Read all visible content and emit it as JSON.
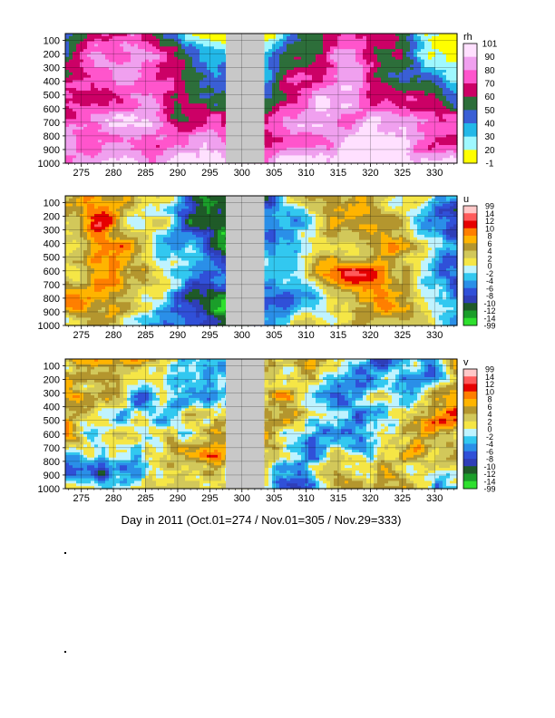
{
  "chart_data": [
    {
      "type": "heatmap",
      "variable": "rh",
      "xlabel": "",
      "ylabel": "",
      "xlim": [
        272.5,
        333.5
      ],
      "ylim": [
        1000,
        50
      ],
      "x_ticks": [
        275,
        280,
        285,
        290,
        295,
        300,
        305,
        310,
        315,
        320,
        325,
        330
      ],
      "y_ticks": [
        100,
        200,
        300,
        400,
        500,
        600,
        700,
        800,
        900,
        1000
      ],
      "missing_days": [
        297.5,
        303.5
      ],
      "colorbar": {
        "labels": [
          "101",
          "90",
          "80",
          "70",
          "60",
          "50",
          "40",
          "30",
          "20",
          "-1"
        ],
        "colors": [
          "#ffe0ff",
          "#f0a0ef",
          "#ff55cc",
          "#cc0066",
          "#2d6e3a",
          "#3a5fd5",
          "#22b8e8",
          "#9ff8ff",
          "#ffff00"
        ]
      },
      "grid": true
    },
    {
      "type": "heatmap",
      "variable": "u",
      "xlabel": "",
      "ylabel": "",
      "xlim": [
        272.5,
        333.5
      ],
      "ylim": [
        1000,
        50
      ],
      "x_ticks": [
        275,
        280,
        285,
        290,
        295,
        300,
        305,
        310,
        315,
        320,
        325,
        330
      ],
      "y_ticks": [
        100,
        200,
        300,
        400,
        500,
        600,
        700,
        800,
        900,
        1000
      ],
      "missing_days": [
        297.5,
        303.5
      ],
      "colorbar": {
        "labels": [
          "99",
          "14",
          "12",
          "10",
          "8",
          "6",
          "4",
          "2",
          "0",
          "-2",
          "-4",
          "-6",
          "-8",
          "-10",
          "-12",
          "-14",
          "-99"
        ],
        "colors": [
          "#ffc8c8",
          "#ff5a5a",
          "#e60000",
          "#ff7f00",
          "#ffb400",
          "#b4962e",
          "#d2c85a",
          "#f5e646",
          "#bff3ff",
          "#32c8f0",
          "#2a8fe8",
          "#3050d8",
          "#2f3eb8",
          "#1f5a28",
          "#1b9e2a",
          "#2ee02e"
        ]
      },
      "grid": true
    },
    {
      "type": "heatmap",
      "variable": "v",
      "xlabel": "Day in 2011 (Oct.01=274 / Nov.01=305 / Nov.29=333)",
      "ylabel": "",
      "xlim": [
        272.5,
        333.5
      ],
      "ylim": [
        1000,
        50
      ],
      "x_ticks": [
        275,
        280,
        285,
        290,
        295,
        300,
        305,
        310,
        315,
        320,
        325,
        330
      ],
      "y_ticks": [
        100,
        200,
        300,
        400,
        500,
        600,
        700,
        800,
        900,
        1000
      ],
      "missing_days": [
        297.5,
        303.5
      ],
      "colorbar": {
        "labels": [
          "99",
          "14",
          "12",
          "10",
          "8",
          "6",
          "4",
          "2",
          "0",
          "-2",
          "-4",
          "-6",
          "-8",
          "-10",
          "-12",
          "-14",
          "-99"
        ],
        "colors": [
          "#ffc8c8",
          "#ff5a5a",
          "#e60000",
          "#ff7f00",
          "#ffb400",
          "#b4962e",
          "#d2c85a",
          "#f5e646",
          "#bff3ff",
          "#32c8f0",
          "#2a8fe8",
          "#3050d8",
          "#2f3eb8",
          "#1f5a28",
          "#1b9e2a",
          "#2ee02e"
        ]
      },
      "grid": true
    }
  ],
  "page_marks": [
    ".",
    "."
  ]
}
